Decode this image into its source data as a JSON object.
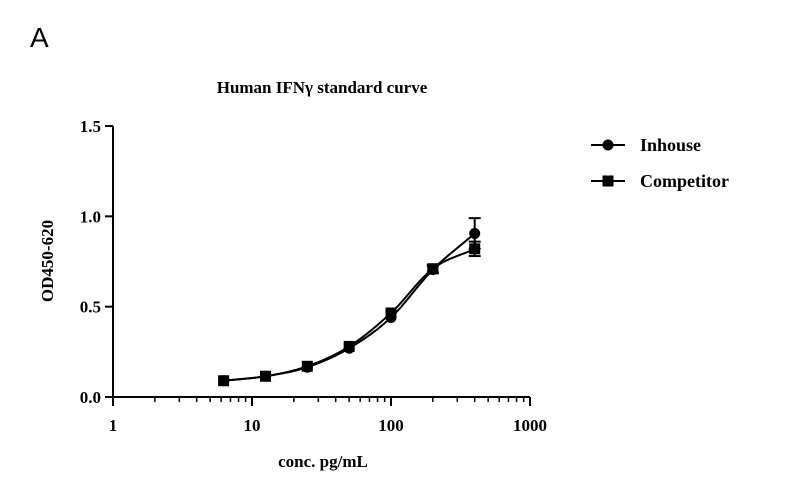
{
  "panel_label": "A",
  "chart_data": {
    "type": "scatter",
    "title": "Human IFNγ standard curve",
    "xlabel": "conc. pg/mL",
    "ylabel": "OD450-620",
    "xscale": "log",
    "xlim": [
      1,
      1000
    ],
    "ylim": [
      0,
      1.5
    ],
    "xticks": [
      1,
      10,
      100,
      1000
    ],
    "xtick_labels": [
      "1",
      "10",
      "100",
      "1000"
    ],
    "yticks": [
      0,
      0.5,
      1.0,
      1.5
    ],
    "ytick_labels": [
      "0.0",
      "0.5",
      "1.0",
      "1.5"
    ],
    "legend_position": "top-right",
    "series": [
      {
        "name": "Inhouse",
        "marker": "circle",
        "color": "#000000",
        "x": [
          6.25,
          12.5,
          25,
          50,
          100,
          200,
          400
        ],
        "y": [
          0.09,
          0.115,
          0.165,
          0.27,
          0.44,
          0.705,
          0.905
        ],
        "err": [
          0.005,
          0.005,
          0.01,
          0.01,
          0.01,
          0.02,
          0.085
        ]
      },
      {
        "name": "Competitor",
        "marker": "square",
        "color": "#000000",
        "x": [
          6.25,
          12.5,
          25,
          50,
          100,
          200,
          400
        ],
        "y": [
          0.09,
          0.115,
          0.17,
          0.28,
          0.465,
          0.71,
          0.82
        ],
        "err": [
          0.005,
          0.005,
          0.01,
          0.01,
          0.01,
          0.02,
          0.04
        ]
      }
    ]
  }
}
